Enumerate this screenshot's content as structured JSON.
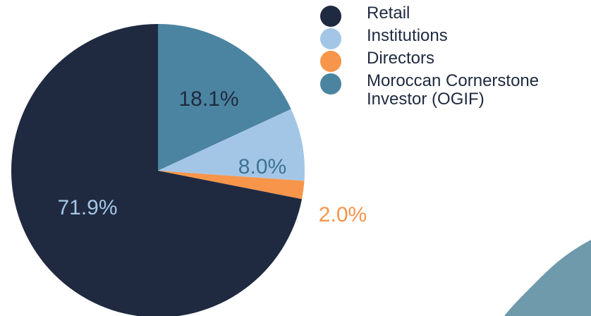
{
  "chart_data": {
    "type": "pie",
    "categories": [
      "Moroccan Cornerstone Investor (OGIF)",
      "Institutions",
      "Directors",
      "Retail"
    ],
    "values": [
      18.1,
      8.0,
      2.0,
      71.9
    ],
    "value_labels": [
      "18.1%",
      "8.0%",
      "2.0%",
      "71.9%"
    ],
    "colors": [
      "#4b84a0",
      "#a4c6e6",
      "#f7954a",
      "#1f2a40"
    ],
    "label_colors": [
      "#1f2a40",
      "#3c7393",
      "#f7954a",
      "#a4c6e6"
    ],
    "legend_order": [
      3,
      1,
      2,
      0
    ],
    "legend": "top-right"
  }
}
